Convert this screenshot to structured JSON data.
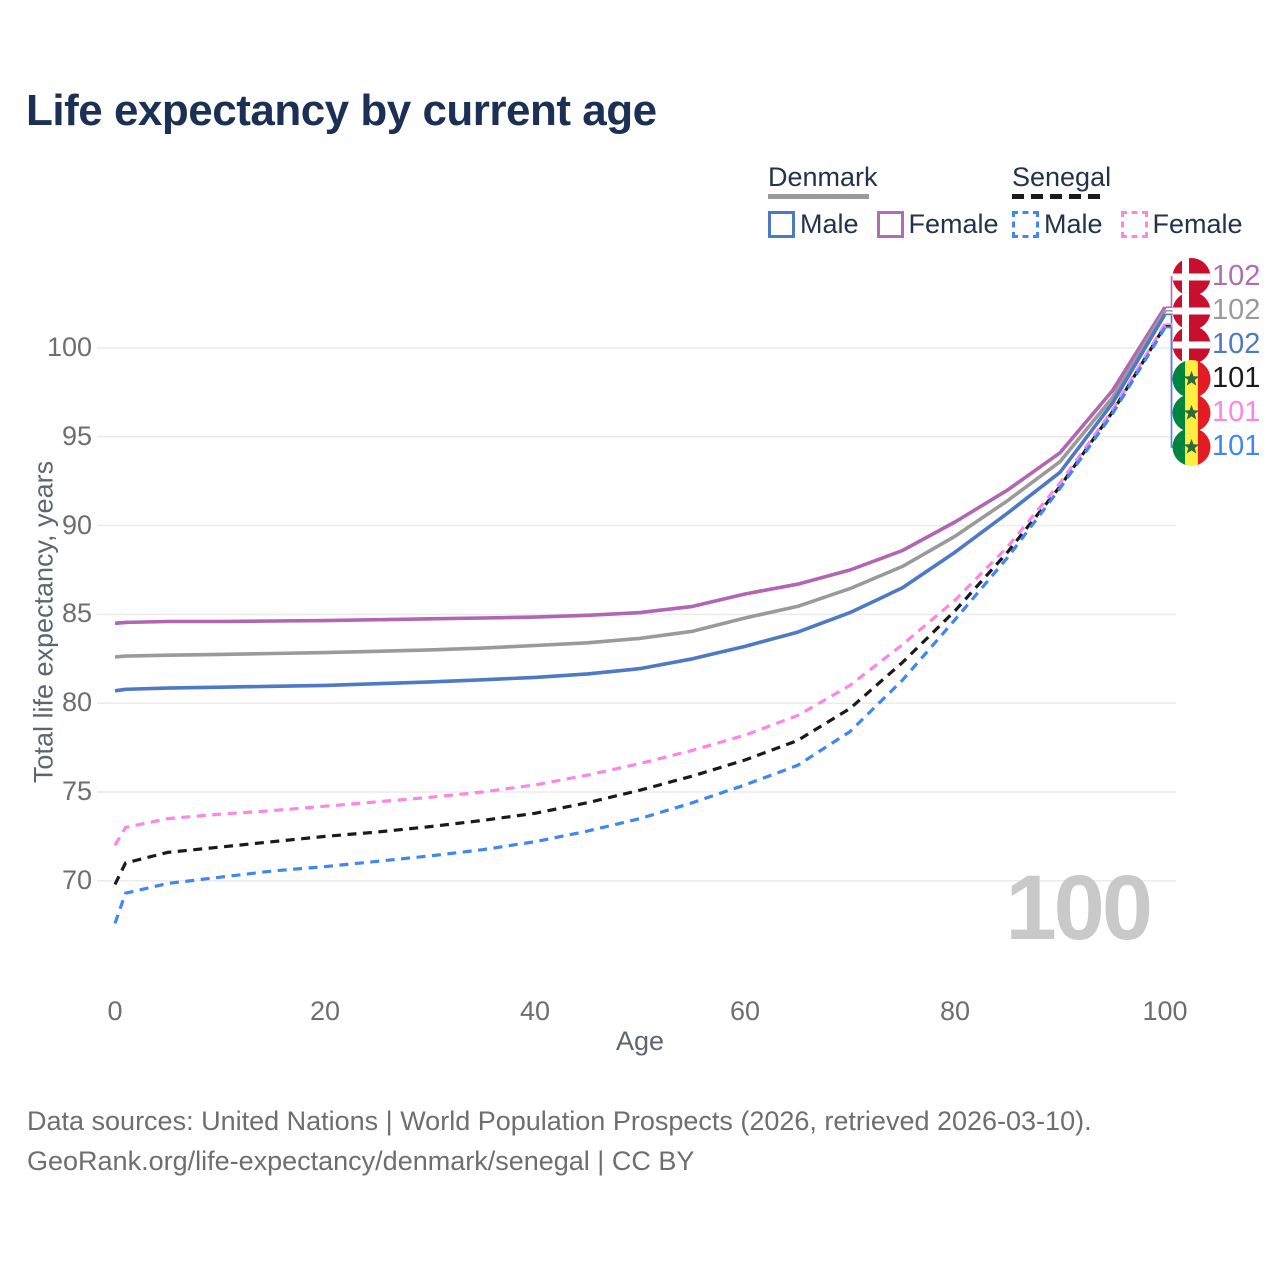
{
  "title": "Life expectancy by current age",
  "legend": {
    "groups": [
      {
        "label": "Denmark",
        "line_style": "solid",
        "underline_color": "#9a9a9a",
        "items": [
          {
            "label": "Male",
            "color": "#4e79c4",
            "dashed": false
          },
          {
            "label": "Female",
            "color": "#b26cb2",
            "dashed": false
          }
        ]
      },
      {
        "label": "Senegal",
        "line_style": "dashed",
        "underline_color": "#1a1a1a",
        "items": [
          {
            "label": "Male",
            "color": "#3f87f5",
            "dashed": true
          },
          {
            "label": "Female",
            "color": "#fb86e3",
            "dashed": true
          }
        ]
      }
    ]
  },
  "axes": {
    "x": {
      "label": "Age",
      "ticks": [
        0,
        20,
        40,
        60,
        80,
        100
      ],
      "range": [
        0,
        100
      ],
      "grid": false
    },
    "y": {
      "label": "Total life expectancy, years",
      "ticks": [
        70,
        75,
        80,
        85,
        90,
        95,
        100
      ],
      "range": [
        66,
        103
      ],
      "grid": true
    }
  },
  "watermark": "100",
  "end_labels": [
    {
      "flag": "denmark",
      "value": "102",
      "color": "#b26cb2",
      "series": "denmark-female"
    },
    {
      "flag": "denmark",
      "value": "102",
      "color": "#9a9a9a",
      "series": "denmark-all"
    },
    {
      "flag": "denmark",
      "value": "102",
      "color": "#4e79c4",
      "series": "denmark-male"
    },
    {
      "flag": "senegal",
      "value": "101",
      "color": "#1a1a1a",
      "series": "senegal-all"
    },
    {
      "flag": "senegal",
      "value": "101",
      "color": "#fb86e3",
      "series": "senegal-female"
    },
    {
      "flag": "senegal",
      "value": "101",
      "color": "#3f87f5",
      "series": "senegal-male"
    }
  ],
  "footer": {
    "line1": "Data sources: United Nations | World Population Prospects (2026, retrieved 2026-03-10).",
    "line2": "GeoRank.org/life-expectancy/denmark/senegal | CC BY"
  },
  "chart_data": {
    "type": "line",
    "title": "Life expectancy by current age",
    "xlabel": "Age",
    "ylabel": "Total life expectancy, years",
    "xlim": [
      0,
      100
    ],
    "ylim_visible_ticks": [
      70,
      100
    ],
    "grid": "horizontal",
    "legend_position": "top-right",
    "ages": [
      0,
      1,
      5,
      10,
      15,
      20,
      25,
      30,
      35,
      40,
      45,
      50,
      55,
      60,
      65,
      70,
      75,
      80,
      85,
      90,
      95,
      100
    ],
    "series": [
      {
        "id": "denmark-female",
        "name": "Denmark Female",
        "color": "#b265b2",
        "dashed": false,
        "end_label": "102",
        "values": [
          84.5,
          84.55,
          84.6,
          84.6,
          84.63,
          84.65,
          84.7,
          84.75,
          84.8,
          84.85,
          84.95,
          85.1,
          85.45,
          86.15,
          86.7,
          87.5,
          88.6,
          90.2,
          92.0,
          94.1,
          97.6,
          102.3
        ]
      },
      {
        "id": "denmark-all",
        "name": "Denmark (both sexes)",
        "color": "#9a9a9a",
        "dashed": false,
        "end_label": "102",
        "values": [
          82.6,
          82.65,
          82.7,
          82.75,
          82.8,
          82.85,
          82.92,
          83.0,
          83.1,
          83.25,
          83.4,
          83.65,
          84.05,
          84.8,
          85.45,
          86.45,
          87.7,
          89.4,
          91.4,
          93.6,
          97.2,
          102.1
        ]
      },
      {
        "id": "denmark-male",
        "name": "Denmark Male",
        "color": "#4e79c4",
        "dashed": false,
        "end_label": "102",
        "values": [
          80.7,
          80.78,
          80.85,
          80.9,
          80.95,
          81.0,
          81.1,
          81.2,
          81.32,
          81.45,
          81.65,
          81.95,
          82.5,
          83.2,
          84.0,
          85.1,
          86.5,
          88.5,
          90.7,
          93.0,
          96.9,
          101.9
        ]
      },
      {
        "id": "senegal-all",
        "name": "Senegal (both sexes)",
        "color": "#1a1a1a",
        "dashed": true,
        "end_label": "101",
        "values": [
          69.8,
          71.0,
          71.6,
          71.9,
          72.2,
          72.5,
          72.75,
          73.05,
          73.4,
          73.8,
          74.4,
          75.1,
          75.9,
          76.8,
          77.9,
          79.7,
          82.3,
          85.2,
          88.5,
          92.2,
          96.4,
          101.25
        ]
      },
      {
        "id": "senegal-female",
        "name": "Senegal Female",
        "color": "#fb86e3",
        "dashed": true,
        "end_label": "101",
        "values": [
          72.0,
          73.0,
          73.5,
          73.75,
          73.95,
          74.2,
          74.45,
          74.7,
          75.0,
          75.4,
          75.95,
          76.6,
          77.35,
          78.2,
          79.3,
          81.0,
          83.3,
          85.8,
          88.8,
          92.4,
          96.5,
          101.35
        ]
      },
      {
        "id": "senegal-male",
        "name": "Senegal Male",
        "color": "#3f87f5",
        "dashed": true,
        "end_label": "101",
        "values": [
          67.6,
          69.3,
          69.85,
          70.2,
          70.55,
          70.8,
          71.1,
          71.4,
          71.75,
          72.2,
          72.8,
          73.5,
          74.4,
          75.4,
          76.5,
          78.4,
          81.3,
          84.7,
          88.2,
          92.1,
          96.3,
          101.15
        ]
      }
    ]
  }
}
